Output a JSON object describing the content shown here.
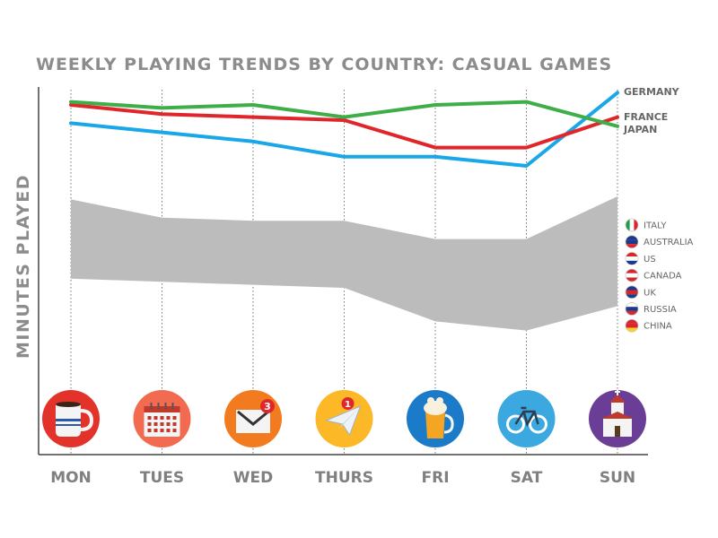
{
  "colors": {
    "germany": "#1aa7e8",
    "france": "#e0262b",
    "japan": "#3fae49",
    "band": "#bcbcbc",
    "axis": "#444444",
    "text": "#8c8c8c"
  },
  "chart_data": {
    "type": "line",
    "title": "WEEKLY PLAYING TRENDS BY COUNTRY: CASUAL GAMES",
    "ylabel": "MINUTES PLAYED",
    "xlabel": "",
    "categories": [
      "MON",
      "TUES",
      "WED",
      "THURS",
      "FRI",
      "SAT",
      "SUN"
    ],
    "y_axis_ticks": false,
    "ylim": [
      0,
      100
    ],
    "grid": "vertical dotted lines at each day",
    "series": [
      {
        "name": "GERMANY",
        "key": "germany",
        "values": [
          89,
          86,
          83,
          78,
          78,
          75,
          99
        ]
      },
      {
        "name": "FRANCE",
        "key": "france",
        "values": [
          95,
          92,
          91,
          90,
          81,
          81,
          91
        ]
      },
      {
        "name": "JAPAN",
        "key": "japan",
        "values": [
          96,
          94,
          95,
          91,
          95,
          96,
          88
        ]
      }
    ],
    "band": {
      "upper": [
        64,
        58,
        57,
        57,
        51,
        51,
        65
      ],
      "lower": [
        38,
        37,
        36,
        35,
        24,
        21,
        29
      ]
    },
    "band_legend": [
      "ITALY",
      "AUSTRALIA",
      "US",
      "CANADA",
      "UK",
      "RUSSIA",
      "CHINA"
    ],
    "day_icons": [
      {
        "day": "MON",
        "icon": "coffee-mug-icon",
        "color": "#e3322a"
      },
      {
        "day": "TUES",
        "icon": "calendar-icon",
        "color": "#f26a4f"
      },
      {
        "day": "WED",
        "icon": "envelope-icon",
        "color": "#f27b20",
        "badge": "3"
      },
      {
        "day": "THURS",
        "icon": "paper-plane-icon",
        "color": "#fcb826",
        "badge": "1"
      },
      {
        "day": "FRI",
        "icon": "beer-mug-icon",
        "color": "#1c7bc8"
      },
      {
        "day": "SAT",
        "icon": "bicycle-icon",
        "color": "#3ba9e0"
      },
      {
        "day": "SUN",
        "icon": "church-icon",
        "color": "#6a3e96"
      }
    ]
  }
}
